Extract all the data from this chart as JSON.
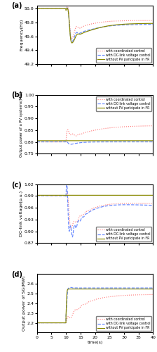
{
  "fig_width": 2.24,
  "fig_height": 5.0,
  "dpi": 100,
  "colors": {
    "coordinated": "#ff8080",
    "dclink": "#6688ff",
    "without": "#888800"
  },
  "legend_labels": [
    "with coordinated control",
    "with DC-link voltage control",
    "without PV partcipate in FR"
  ],
  "subplot_labels": [
    "(a)",
    "(b)",
    "(c)",
    "(d)"
  ],
  "ylabels": [
    "Frequency(Hz)",
    "Output power of a PV systems(MW)",
    "DC-link voltage(p.u.)",
    "Output power of SG(MW)"
  ],
  "xlabel": "time(s)",
  "panel_a": {
    "ylim": [
      49.2,
      50.05
    ],
    "yticks": [
      49.2,
      49.4,
      49.6,
      49.8,
      50.0
    ]
  },
  "panel_b": {
    "ylim": [
      0.75,
      1.0
    ],
    "yticks": [
      0.75,
      0.8,
      0.85,
      0.9,
      0.95,
      1.0
    ]
  },
  "panel_c": {
    "ylim": [
      0.87,
      1.02
    ],
    "yticks": [
      0.87,
      0.9,
      0.93,
      0.96,
      0.99,
      1.02
    ]
  },
  "panel_d": {
    "ylim": [
      2.1,
      2.7
    ],
    "yticks": [
      2.2,
      2.3,
      2.4,
      2.5,
      2.6
    ]
  }
}
